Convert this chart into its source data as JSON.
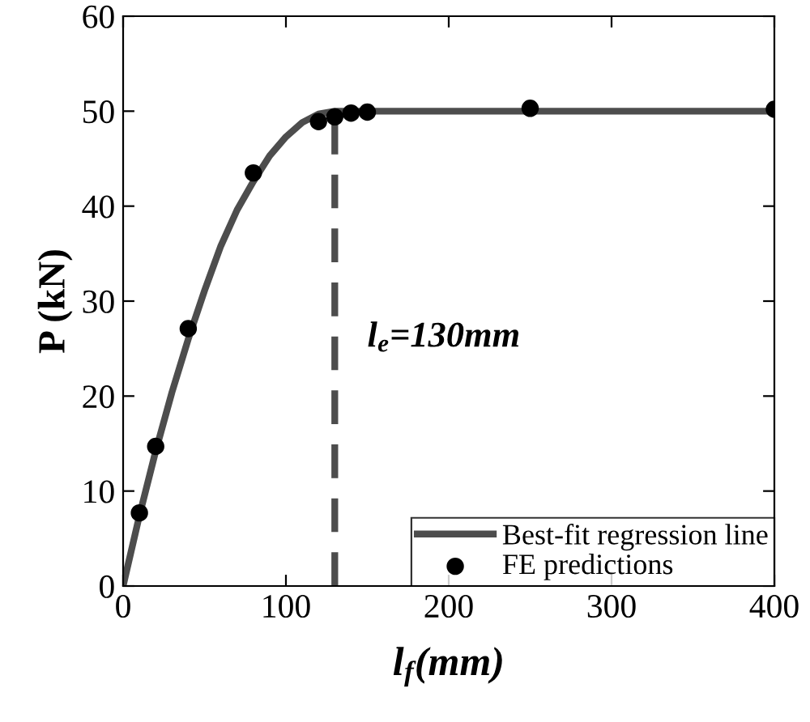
{
  "chart_data": {
    "type": "line",
    "xlabel": "l$_{f}$(mm)",
    "ylabel": "P (kN)",
    "xlim": [
      0,
      400
    ],
    "xticks": [
      0,
      100,
      200,
      300,
      400
    ],
    "ylim": [
      0,
      60
    ],
    "yticks": [
      0,
      10,
      20,
      30,
      40,
      50,
      60
    ],
    "grid": false,
    "legend": "bottom right",
    "series": [
      {
        "name": "Best-fit regression line",
        "color": "#4d4d4d",
        "marker": "none",
        "line_style": "solid",
        "x": [
          0,
          10,
          20,
          30,
          40,
          50,
          60,
          70,
          80,
          90,
          100,
          110,
          120,
          130,
          400
        ],
        "values": [
          0,
          7.4,
          14.2,
          20.4,
          26.0,
          31.1,
          35.8,
          39.6,
          42.6,
          45.3,
          47.3,
          48.8,
          49.7,
          50,
          50
        ]
      },
      {
        "name": "FE predictions",
        "type": "scatter",
        "color": "#000000",
        "marker": "circle",
        "x": [
          10,
          20,
          40,
          80,
          120,
          130,
          140,
          150,
          250,
          400
        ],
        "values": [
          7.7,
          14.7,
          27.1,
          43.5,
          48.9,
          49.4,
          49.8,
          49.9,
          50.3,
          50.2
        ]
      }
    ],
    "ref_lines": [
      {
        "axis": "x",
        "value": 130,
        "color": "#4d4d4d",
        "line_style": "dashed"
      }
    ],
    "annotations": [
      "l$_{e}$=130mm"
    ]
  }
}
